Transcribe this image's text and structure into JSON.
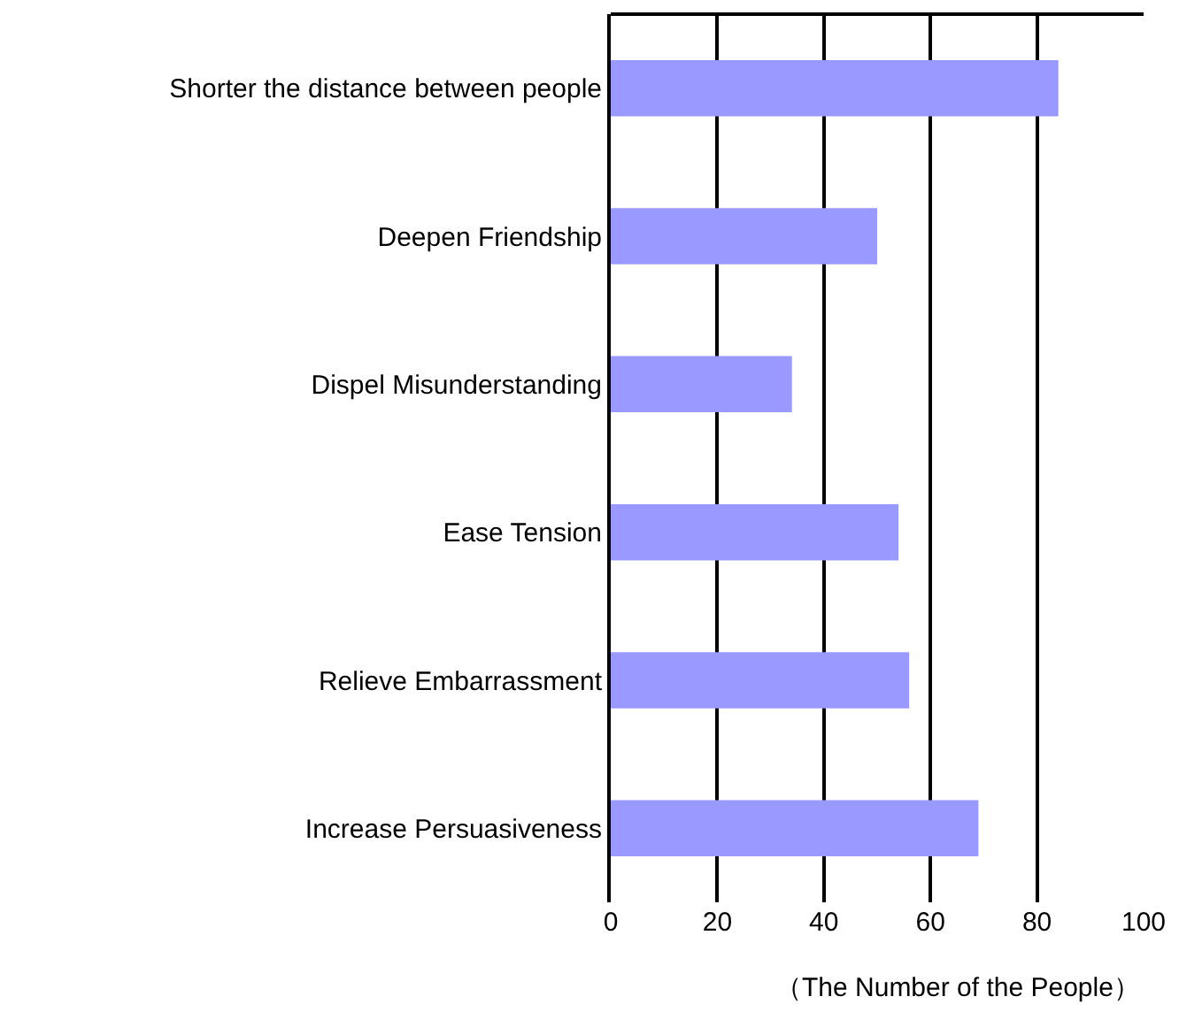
{
  "chart_data": {
    "type": "bar",
    "orientation": "horizontal",
    "categories": [
      "Shorter the distance between people",
      "Deepen Friendship",
      "Dispel Misunderstanding",
      "Ease Tension",
      "Relieve Embarrassment",
      "Increase Persuasiveness"
    ],
    "values": [
      84,
      50,
      34,
      54,
      56,
      69
    ],
    "color": "#9999ff",
    "xlim": [
      0,
      100
    ],
    "xticks": [
      0,
      20,
      40,
      60,
      80,
      100
    ],
    "grid": "x",
    "xlabel": "（The Number of the People）",
    "legend": false
  }
}
